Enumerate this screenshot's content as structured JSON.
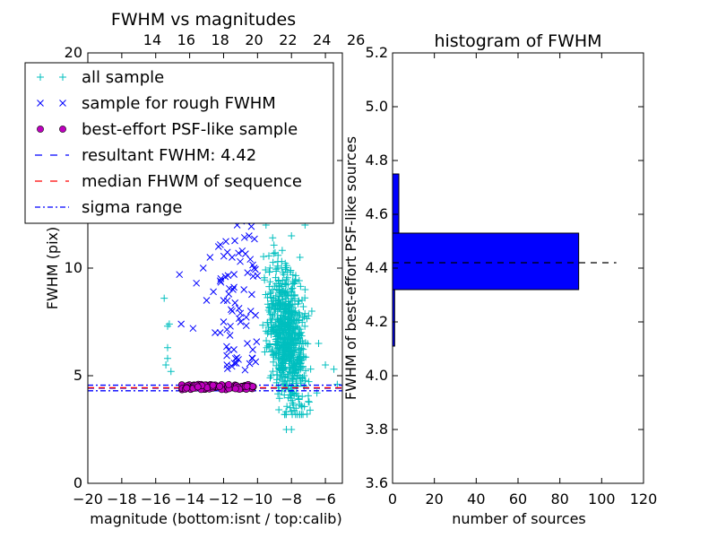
{
  "chart_data": [
    {
      "type": "scatter",
      "title": "FWHM vs magnitudes",
      "xlabel": "magnitude (bottom:isnt / top:calib)",
      "ylabel": "FWHM (pix)",
      "xlim": [
        -20,
        -5
      ],
      "ylim": [
        0,
        20
      ],
      "xticks": [
        -20,
        -18,
        -16,
        -14,
        -12,
        -10,
        -8,
        -6
      ],
      "yticks": [
        0,
        5,
        10,
        15,
        20
      ],
      "top_axis": {
        "ticks": [
          14,
          16,
          18,
          20,
          22,
          24,
          26
        ],
        "offset_from_bottom": 30.2
      },
      "legend": {
        "placement": "upper-left",
        "entries": [
          {
            "label": "all sample",
            "marker": "plus",
            "color": "#00bfbf"
          },
          {
            "label": "sample for rough FWHM",
            "marker": "x",
            "color": "#0000ff"
          },
          {
            "label": "best-effort PSF-like sample",
            "marker": "circle",
            "color": "#bf00bf"
          },
          {
            "label": "resultant FWHM: 4.42",
            "marker": "dashed",
            "color": "#0000ff"
          },
          {
            "label": "median FHWM of sequence",
            "marker": "dashed",
            "color": "#ff0000"
          },
          {
            "label": "sigma range",
            "marker": "dashdot",
            "color": "#0000ff"
          }
        ]
      },
      "series": [
        {
          "marker": "plus",
          "color": "#00bfbf",
          "points": [
            [
              -15.5,
              8.6
            ],
            [
              -15.3,
              7.3
            ],
            [
              -15.2,
              7.4
            ],
            [
              -15.3,
              6.3
            ],
            [
              -15.3,
              5.8
            ],
            [
              -15.4,
              5.5
            ],
            [
              -15.1,
              5.2
            ],
            [
              -10.0,
              19.0
            ],
            [
              -9.6,
              17.5
            ],
            [
              -8.6,
              16.0
            ],
            [
              -8.5,
              15.0
            ],
            [
              -9.0,
              13.0
            ],
            [
              -9.5,
              12.0
            ],
            [
              -8.0,
              11.5
            ],
            [
              -7.5,
              10.5
            ],
            [
              -8.8,
              10.0
            ],
            [
              -7.2,
              9.0
            ],
            [
              -6.8,
              8.0
            ],
            [
              -8.3,
              7.0
            ],
            [
              -6.4,
              6.5
            ],
            [
              -7.8,
              6.2
            ],
            [
              -6.0,
              5.5
            ],
            [
              -9.2,
              5.0
            ],
            [
              -8.0,
              4.5
            ],
            [
              -6.5,
              4.2
            ],
            [
              -7.0,
              3.8
            ],
            [
              -6.9,
              3.4
            ],
            [
              -8.3,
              2.5
            ],
            [
              -8.0,
              2.5
            ],
            [
              -5.5,
              5.3
            ],
            [
              -5.3,
              4.6
            ],
            [
              -6.8,
              19.0
            ],
            [
              -9.8,
              14.0
            ],
            [
              -8.4,
              12.5
            ],
            [
              -7.2,
              12.0
            ]
          ],
          "cloud": {
            "x_range": [
              -10.0,
              -5.2
            ],
            "y_range": [
              3.2,
              17.0
            ],
            "count": 700,
            "peak_x": -8.3,
            "peak_y": 6.8
          }
        },
        {
          "marker": "x",
          "color": "#0000ff",
          "points": [
            [
              -14.6,
              9.7
            ],
            [
              -14.5,
              7.4
            ],
            [
              -13.6,
              9.3
            ],
            [
              -12.0,
              8.5
            ],
            [
              -12.2,
              7.0
            ],
            [
              -11.7,
              6.2
            ],
            [
              -13.8,
              7.2
            ],
            [
              -13.2,
              10.0
            ],
            [
              -11.3,
              5.8
            ],
            [
              -10.5,
              11.5
            ],
            [
              -10.3,
              13.0
            ],
            [
              -10.1,
              14.5
            ],
            [
              -12.8,
              10.5
            ],
            [
              -11.5,
              10.5
            ],
            [
              -13.0,
              8.5
            ],
            [
              -11.8,
              5.5
            ],
            [
              -10.8,
              9.0
            ],
            [
              -11.0,
              7.5
            ],
            [
              -10.2,
              10.0
            ],
            [
              -12.5,
              7.0
            ],
            [
              -11.2,
              12.0
            ],
            [
              -10.6,
              6.5
            ],
            [
              -12.3,
              11.0
            ],
            [
              -10.4,
              8.0
            ],
            [
              -11.6,
              7.3
            ],
            [
              -12.0,
              7.5
            ],
            [
              -10.9,
              10.8
            ],
            [
              -10.7,
              12.4
            ],
            [
              -11.9,
              9.6
            ],
            [
              -12.6,
              8.9
            ]
          ]
        },
        {
          "marker": "circle",
          "color": "#bf00bf",
          "x_range": [
            -14.6,
            -10.1
          ],
          "y_range": [
            4.35,
            4.6
          ],
          "count": 90
        }
      ],
      "lines": [
        {
          "name": "resultant FWHM: 4.42",
          "y": 4.42,
          "style": "dashed",
          "color": "#0000ff"
        },
        {
          "name": "median FHWM of sequence",
          "y": 4.44,
          "style": "dashed",
          "color": "#ff0000"
        },
        {
          "name": "sigma range",
          "y": 4.3,
          "style": "dashdot",
          "color": "#0000ff"
        },
        {
          "name": "sigma range",
          "y": 4.56,
          "style": "dashdot",
          "color": "#0000ff"
        }
      ]
    },
    {
      "type": "bar",
      "orientation": "horizontal",
      "title": "histogram of FWHM",
      "xlabel": "number of sources",
      "ylabel": "FWHM of best-effort PSF-like sources",
      "xlim": [
        0,
        120
      ],
      "ylim": [
        3.6,
        5.2
      ],
      "xticks": [
        0,
        20,
        40,
        60,
        80,
        100,
        120
      ],
      "yticks": [
        3.6,
        3.8,
        4.0,
        4.2,
        4.4,
        4.6,
        4.8,
        5.0,
        5.2
      ],
      "bars": [
        {
          "y0": 4.11,
          "y1": 4.32,
          "count": 1
        },
        {
          "y0": 4.32,
          "y1": 4.53,
          "count": 89
        },
        {
          "y0": 4.53,
          "y1": 4.75,
          "count": 3
        }
      ],
      "bar_color": "#0000ff",
      "reference_line": {
        "y": 4.42,
        "x_range": [
          0,
          107
        ],
        "style": "dashed",
        "color": "#000000"
      }
    }
  ]
}
